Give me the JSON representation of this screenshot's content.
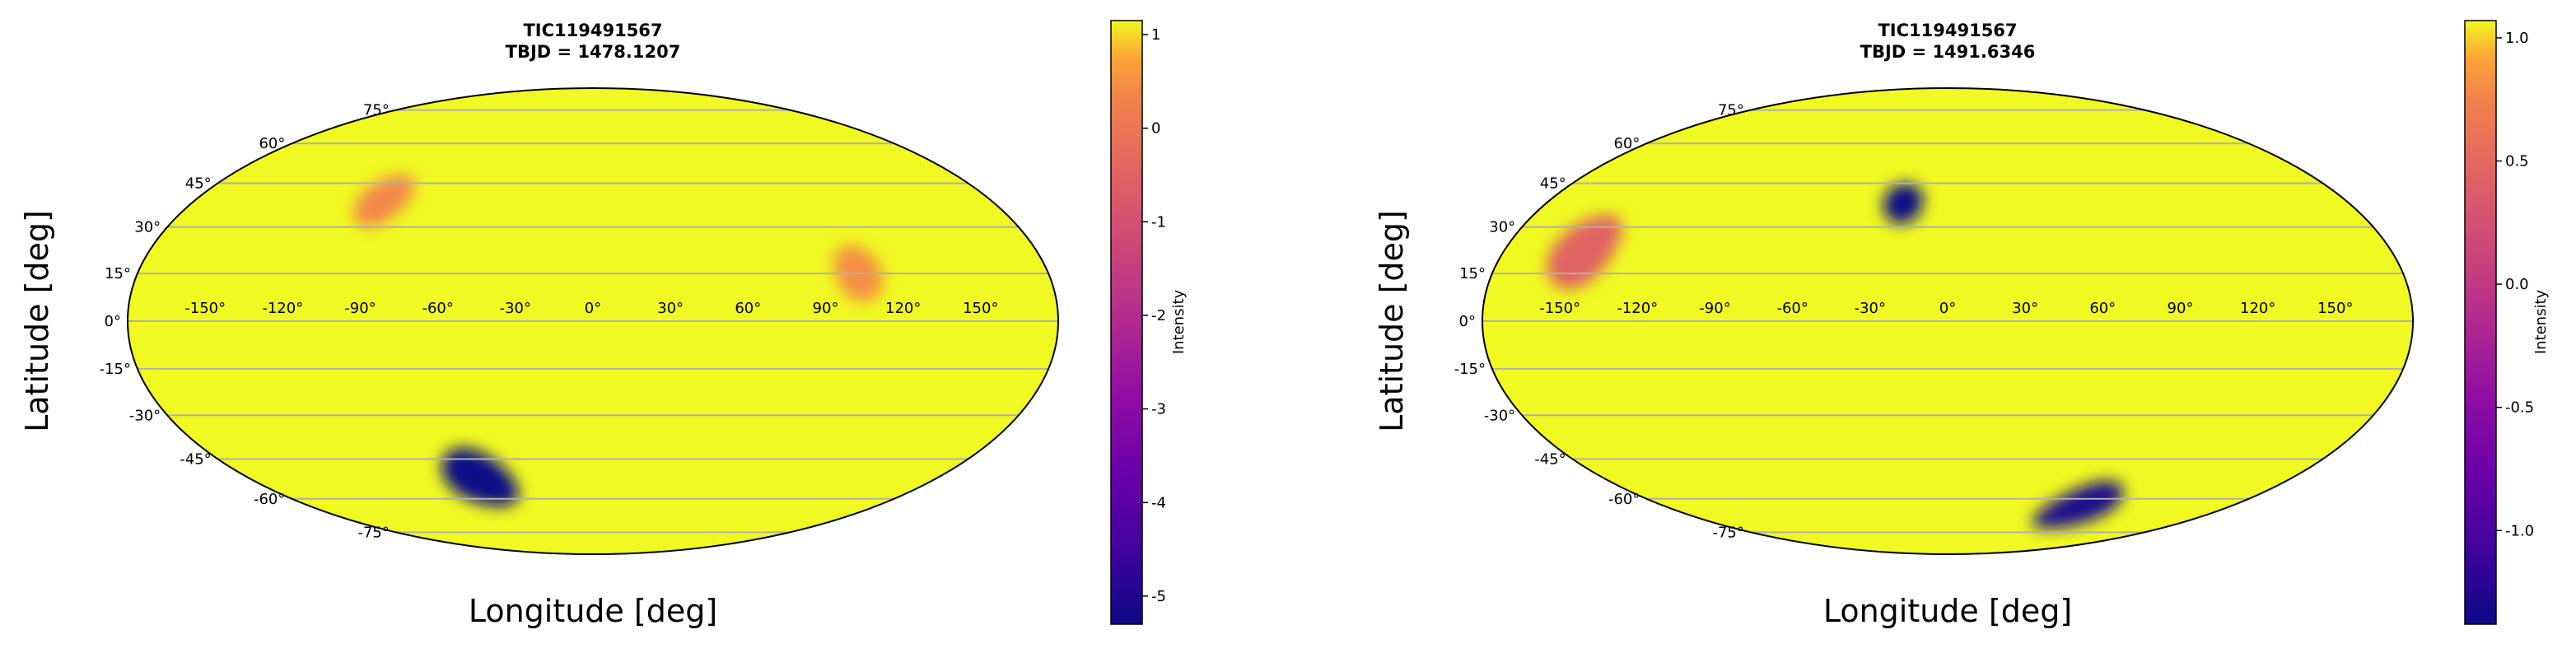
{
  "chart_data": [
    {
      "type": "heatmap",
      "projection": "mollweide",
      "title": "TIC119491567",
      "subtitle": "TBJD = 1478.1207",
      "xlabel": "Longitude [deg]",
      "ylabel": "Latitude [deg]",
      "colorbar_label": "Intensity",
      "colormap": "plasma",
      "value_range": [
        -5.3,
        1.15
      ],
      "colorbar_ticks": [
        "1",
        "0",
        "-1",
        "-2",
        "-3",
        "-4",
        "-5"
      ],
      "colorbar_tick_values": [
        1,
        0,
        -1,
        -2,
        -3,
        -4,
        -5
      ],
      "lon_ticks": [
        "-150°",
        "-120°",
        "-90°",
        "-60°",
        "-30°",
        "0°",
        "30°",
        "60°",
        "90°",
        "120°",
        "150°"
      ],
      "lon_tick_values": [
        -150,
        -120,
        -90,
        -60,
        -30,
        0,
        30,
        60,
        90,
        120,
        150
      ],
      "lat_ticks": [
        "75°",
        "60°",
        "45°",
        "30°",
        "15°",
        "0°",
        "-15°",
        "-30°",
        "-45°",
        "-60°",
        "-75°"
      ],
      "lat_tick_values": [
        75,
        60,
        45,
        30,
        15,
        0,
        -15,
        -30,
        -45,
        -60,
        -75
      ],
      "grid": true,
      "background_intensity": 1.0,
      "spots": [
        {
          "lon": -60,
          "lat": -52,
          "intensity": -5.3,
          "radius_deg": 11
        },
        {
          "lon": -95,
          "lat": 39,
          "intensity": -0.2,
          "radius_deg": 9
        },
        {
          "lon": 105,
          "lat": 15,
          "intensity": -0.05,
          "radius_deg": 9
        }
      ]
    },
    {
      "type": "heatmap",
      "projection": "mollweide",
      "title": "TIC119491567",
      "subtitle": "TBJD = 1491.6346",
      "xlabel": "Longitude [deg]",
      "ylabel": "Latitude [deg]",
      "colorbar_label": "Intensity",
      "colormap": "plasma",
      "value_range": [
        -1.38,
        1.07
      ],
      "colorbar_ticks": [
        "1.0",
        "0.5",
        "0.0",
        "-0.5",
        "-1.0"
      ],
      "colorbar_tick_values": [
        1.0,
        0.5,
        0.0,
        -0.5,
        -1.0
      ],
      "lon_ticks": [
        "-150°",
        "-120°",
        "-90°",
        "-60°",
        "-30°",
        "0°",
        "30°",
        "60°",
        "90°",
        "120°",
        "150°"
      ],
      "lon_tick_values": [
        -150,
        -120,
        -90,
        -60,
        -30,
        0,
        30,
        60,
        90,
        120,
        150
      ],
      "lat_ticks": [
        "75°",
        "60°",
        "45°",
        "30°",
        "15°",
        "0°",
        "-15°",
        "-30°",
        "-45°",
        "-60°",
        "-75°"
      ],
      "lat_tick_values": [
        75,
        60,
        45,
        30,
        15,
        0,
        -15,
        -30,
        -45,
        -60,
        -75
      ],
      "grid": true,
      "background_intensity": 1.0,
      "spots": [
        {
          "lon": -20,
          "lat": 38,
          "intensity": -1.38,
          "radius_deg": 7
        },
        {
          "lon": 85,
          "lat": -63,
          "intensity": -1.3,
          "radius_deg": 10
        },
        {
          "lon": -148,
          "lat": 22,
          "intensity": 0.25,
          "radius_deg": 12
        }
      ]
    }
  ]
}
